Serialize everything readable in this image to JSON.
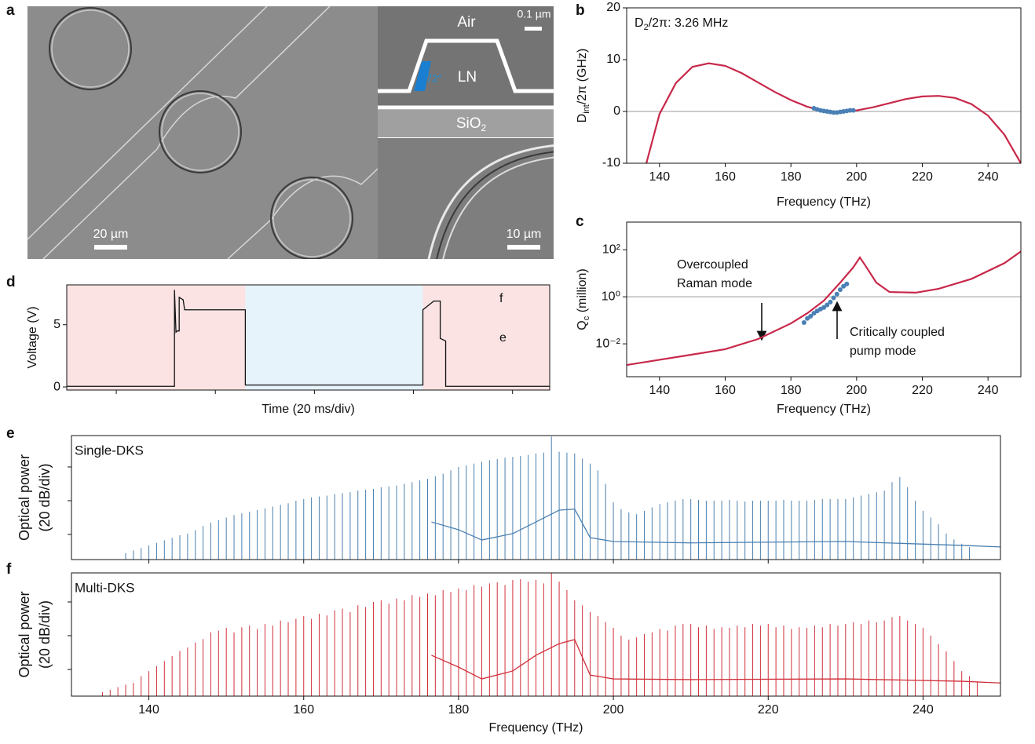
{
  "panel_labels": [
    "a",
    "b",
    "c",
    "d",
    "e",
    "f"
  ],
  "sem_image": {
    "scale_main": "20 µm",
    "scale_ring": "10 µm",
    "scale_inset": "0.1 µm",
    "air": "Air",
    "ln": "LN",
    "sio2": [
      "SiO",
      "2"
    ],
    "angle": "72°"
  },
  "chart_data": [
    {
      "type": "line",
      "xlabel": "Frequency (THz)",
      "ylabel": [
        "D",
        "int",
        "/2π (GHz)"
      ],
      "annotation": [
        "D",
        "2",
        "/2π: 3.26 MHz"
      ],
      "xlim": [
        130,
        250
      ],
      "ylim": [
        -10,
        20
      ],
      "xticks": [
        140,
        160,
        180,
        200,
        220,
        240
      ],
      "yticks": [
        -10,
        0,
        10,
        20
      ],
      "hline": 0,
      "series": [
        {
          "style": "line",
          "color": "#c8284a",
          "x": [
            136,
            140,
            145,
            150,
            155,
            160,
            165,
            170,
            175,
            180,
            185,
            190,
            195,
            200,
            205,
            210,
            215,
            220,
            225,
            230,
            235,
            240,
            245,
            250
          ],
          "values": [
            -10,
            -0.5,
            5.5,
            8.6,
            9.3,
            8.8,
            7.4,
            5.6,
            3.8,
            2.2,
            0.9,
            0.1,
            -0.1,
            0.2,
            0.8,
            1.6,
            2.4,
            2.9,
            3.0,
            2.6,
            1.4,
            -0.8,
            -4.5,
            -10
          ]
        },
        {
          "style": "markers",
          "color": "#4a80b5",
          "x": [
            187,
            188,
            189,
            190,
            191,
            192,
            193,
            194,
            195,
            196,
            197,
            198,
            199
          ],
          "values": [
            0.6,
            0.4,
            0.2,
            0.1,
            0,
            -0.1,
            -0.2,
            -0.2,
            -0.1,
            0,
            0.1,
            0.2,
            0.2
          ]
        }
      ]
    },
    {
      "type": "line",
      "xlabel": "Frequency (THz)",
      "ylabel": [
        "Q",
        "c",
        " (million)"
      ],
      "log_y": true,
      "annotations": [
        [
          "Overcoupled",
          "Raman mode"
        ],
        [
          "Critically coupled",
          "pump mode"
        ]
      ],
      "xlim": [
        130,
        250
      ],
      "ylim": [
        0.0004,
        1500
      ],
      "xticks": [
        140,
        160,
        180,
        200,
        220,
        240
      ],
      "yticks": [
        {
          "value": 0.01,
          "label": "10⁻²"
        },
        {
          "value": 1,
          "label": "10⁰"
        },
        {
          "value": 100,
          "label": "10²"
        }
      ],
      "hline": 1,
      "series": [
        {
          "style": "line",
          "color": "#c8284a",
          "x": [
            130,
            140,
            150,
            160,
            170,
            180,
            185,
            190,
            195,
            199,
            201,
            203,
            206,
            210,
            218,
            225,
            235,
            245,
            250
          ],
          "values": [
            0.00126,
            0.0021,
            0.0035,
            0.0059,
            0.016,
            0.074,
            0.2,
            0.68,
            4,
            18,
            47,
            18,
            4,
            1.6,
            1.5,
            2.2,
            5.8,
            27,
            85
          ]
        },
        {
          "style": "markers",
          "color": "#4a80b5",
          "x": [
            184,
            185,
            186,
            187,
            188,
            189,
            190,
            191,
            192,
            193,
            194,
            195,
            196,
            197
          ],
          "values": [
            0.08,
            0.12,
            0.15,
            0.2,
            0.25,
            0.3,
            0.35,
            0.45,
            0.6,
            0.9,
            1.3,
            2,
            2.8,
            3.5
          ]
        }
      ]
    },
    {
      "type": "line",
      "xlabel": "Time (20 ms/div)",
      "ylabel": "Voltage (V)",
      "annotations": [
        "f",
        "e"
      ],
      "xlim": [
        0,
        195
      ],
      "ylim": [
        -0.25,
        8.2
      ],
      "xticks": [
        20,
        60,
        100,
        140,
        180
      ],
      "xtick_labels": false,
      "yticks": [
        0,
        5
      ],
      "regions": [
        {
          "x": [
            0,
            72.1
          ],
          "color": "#fbe3e3"
        },
        {
          "x": [
            72.1,
            143.8
          ],
          "color": "#e6f3fa"
        },
        {
          "x": [
            143.8,
            195
          ],
          "color": "#fbe3e3"
        }
      ],
      "series": [
        {
          "style": "line",
          "color": "#111111",
          "x": [
            0,
            43.5,
            43.5,
            44.1,
            44.6,
            45.4,
            45.4,
            47,
            47.6,
            72.1,
            72.1,
            143.8,
            143.8,
            148.2,
            150.8,
            150.8,
            153,
            153,
            195
          ],
          "values": [
            0.05,
            0.05,
            7.8,
            4.4,
            4.5,
            4.5,
            7.2,
            7.0,
            6.2,
            6.2,
            0.15,
            0.15,
            6.2,
            6.9,
            6.9,
            3.9,
            3.7,
            0.05,
            0.05
          ]
        }
      ]
    },
    {
      "type": "line",
      "ylabel_lines": [
        "Optical power",
        "(20 dB/div)"
      ],
      "label": "Single-DKS",
      "xlim": [
        130,
        250
      ],
      "ylim": [
        -14.9,
        58.6
      ],
      "xticks": [
        140,
        160,
        180,
        200,
        220,
        240
      ],
      "xtick_labels": false,
      "yticks": [
        0,
        20,
        40
      ],
      "ytick_labels": false,
      "series": [
        {
          "style": "stems",
          "color": "#4a80b0",
          "x": [
            137,
            138,
            139,
            140,
            141,
            142,
            143,
            144,
            145,
            146,
            147,
            148,
            149,
            150,
            151,
            152,
            153,
            154,
            155,
            156,
            157,
            158,
            159,
            160,
            161,
            162,
            163,
            164,
            165,
            166,
            167,
            168,
            169,
            170,
            171,
            172,
            173,
            174,
            175,
            176,
            177,
            178,
            179,
            180,
            181,
            182,
            183,
            184,
            185,
            186,
            187,
            188,
            189,
            190,
            191,
            192,
            193,
            194,
            195,
            196,
            197,
            198,
            199,
            200,
            201,
            202,
            203,
            204,
            205,
            206,
            207,
            208,
            209,
            210,
            211,
            212,
            213,
            214,
            215,
            216,
            217,
            218,
            219,
            220,
            221,
            222,
            223,
            224,
            225,
            226,
            227,
            228,
            229,
            230,
            231,
            232,
            233,
            234,
            235,
            236,
            237,
            238,
            239,
            240,
            241,
            242,
            243,
            244,
            245,
            246
          ],
          "values": [
            -11,
            -9.5,
            -8,
            -6.5,
            -5,
            -3.5,
            -2,
            -0.5,
            0.5,
            2.5,
            5,
            7,
            8.5,
            10,
            11.5,
            12.5,
            13.5,
            14.5,
            15.5,
            16.5,
            17.5,
            18.5,
            20,
            21,
            22,
            22.5,
            23,
            24,
            24.5,
            25,
            26,
            26.5,
            27,
            28,
            28.5,
            29,
            30,
            31,
            32,
            33,
            34.5,
            36,
            38,
            40,
            41,
            42,
            43,
            44,
            44.7,
            45.5,
            46,
            46.5,
            47,
            48,
            48.5,
            58,
            49,
            48.5,
            48,
            45,
            42,
            38,
            30,
            19,
            15,
            13,
            12,
            14,
            16,
            18,
            19,
            20,
            21,
            21,
            20.5,
            20,
            20,
            20,
            20.5,
            20,
            19.5,
            20,
            20,
            20,
            20,
            20.5,
            20,
            20,
            20,
            20.5,
            21,
            21,
            21,
            21,
            22,
            23,
            24,
            25,
            26,
            31,
            34,
            28,
            20,
            14,
            10,
            6,
            0.5,
            -3,
            -5.5,
            -7.5
          ]
        },
        {
          "style": "line",
          "color": "#4a80b0",
          "x": [
            176.5,
            180,
            183,
            187,
            190,
            193,
            195,
            197,
            200,
            210,
            230,
            245,
            250
          ],
          "values": [
            7.4,
            2.8,
            -3.3,
            0.5,
            7.4,
            14.4,
            15,
            -1.9,
            -4.2,
            -5,
            -4.2,
            -6.5,
            -7.4
          ]
        }
      ]
    },
    {
      "type": "line",
      "xlabel": "Frequency (THz)",
      "ylabel_lines": [
        "Optical power",
        "(20 dB/div)"
      ],
      "label": "Multi-DKS",
      "xlim": [
        130,
        250
      ],
      "ylim": [
        -15.8,
        57.2
      ],
      "xticks": [
        140,
        160,
        180,
        200,
        220,
        240
      ],
      "yticks": [
        0,
        20,
        40
      ],
      "ytick_labels": false,
      "series": [
        {
          "style": "stems",
          "color": "#d0303a",
          "x": [
            134,
            135,
            136,
            137,
            138,
            139,
            140,
            141,
            142,
            143,
            144,
            145,
            146,
            147,
            148,
            149,
            150,
            151,
            152,
            153,
            154,
            155,
            156,
            157,
            158,
            159,
            160,
            161,
            162,
            163,
            164,
            165,
            166,
            167,
            168,
            169,
            170,
            171,
            172,
            173,
            174,
            175,
            176,
            177,
            178,
            179,
            180,
            181,
            182,
            183,
            184,
            185,
            186,
            187,
            188,
            189,
            190,
            191,
            192,
            193,
            194,
            195,
            196,
            197,
            198,
            199,
            200,
            201,
            202,
            203,
            204,
            205,
            206,
            207,
            208,
            209,
            210,
            211,
            212,
            213,
            214,
            215,
            216,
            217,
            218,
            219,
            220,
            221,
            222,
            223,
            224,
            225,
            226,
            227,
            228,
            229,
            230,
            231,
            232,
            233,
            234,
            235,
            236,
            237,
            238,
            239,
            240,
            241,
            242,
            243,
            244,
            245,
            246,
            247
          ],
          "values": [
            -13.5,
            -12,
            -10.5,
            -9,
            -8,
            -4,
            -1,
            2,
            5,
            8,
            11,
            13,
            16,
            18,
            22,
            23,
            24.7,
            22,
            25,
            26,
            24,
            27,
            26,
            29,
            28,
            30,
            31.6,
            30,
            33,
            32,
            35,
            36,
            34,
            38,
            37,
            40,
            41,
            39,
            42,
            41,
            44,
            43,
            45,
            44,
            47,
            46,
            48,
            47,
            50,
            49,
            51,
            51.6,
            50,
            53,
            53.5,
            52,
            53,
            51,
            57,
            52,
            47,
            41,
            38,
            34,
            31.6,
            28,
            24.7,
            20,
            17.7,
            19,
            21,
            22,
            24,
            23,
            26,
            27,
            27,
            25,
            26,
            24,
            25,
            24.7,
            26,
            25,
            27,
            26,
            27,
            25,
            26,
            24,
            25,
            24.7,
            26,
            25,
            27,
            26,
            27,
            28,
            27,
            29,
            28,
            29,
            31,
            31.6,
            29,
            27,
            24.7,
            20,
            15,
            10.7,
            5,
            -1,
            -4,
            -7
          ]
        },
        {
          "style": "line",
          "color": "#d0303a",
          "x": [
            176.5,
            180,
            183,
            187,
            190,
            193,
            195,
            197,
            200,
            210,
            230,
            245,
            250
          ],
          "values": [
            8.4,
            1.4,
            -5.6,
            -0.9,
            8.4,
            15.3,
            17.7,
            -3.3,
            -5.6,
            -6,
            -5.6,
            -7,
            -8
          ]
        }
      ]
    }
  ]
}
